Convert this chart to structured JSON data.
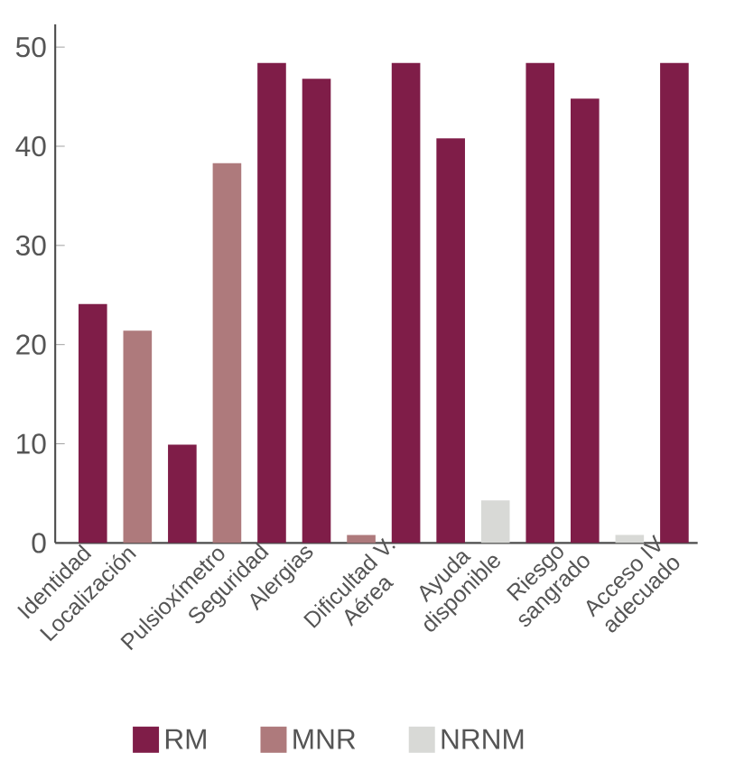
{
  "chart_data": {
    "type": "bar",
    "categories": [
      "Identidad",
      "Localización",
      null,
      "Pulsioxímetro",
      "Seguridad",
      "Alergias",
      null,
      "Dificultad V. Aérea",
      null,
      "Ayuda disponible",
      null,
      "Riesgo sangrado",
      null,
      "Acceso IV adecuado"
    ],
    "series": [
      {
        "name": "RM",
        "color": "#7f1d48",
        "values": [
          24.1,
          null,
          9.9,
          null,
          48.4,
          46.8,
          null,
          48.4,
          40.8,
          null,
          48.4,
          44.8,
          null,
          48.4
        ]
      },
      {
        "name": "MNR",
        "color": "#ae7a7c",
        "values": [
          null,
          21.4,
          null,
          38.3,
          null,
          null,
          0.8,
          null,
          null,
          null,
          null,
          null,
          null,
          null
        ]
      },
      {
        "name": "NRNM",
        "color": "#d8d9d6",
        "values": [
          null,
          null,
          null,
          null,
          null,
          null,
          null,
          null,
          null,
          4.3,
          null,
          null,
          0.8,
          null
        ]
      }
    ],
    "ylim": [
      0,
      52.3
    ],
    "yticks": [
      0,
      10,
      20,
      30,
      40,
      50
    ],
    "grid": false,
    "legend": "bottom"
  }
}
